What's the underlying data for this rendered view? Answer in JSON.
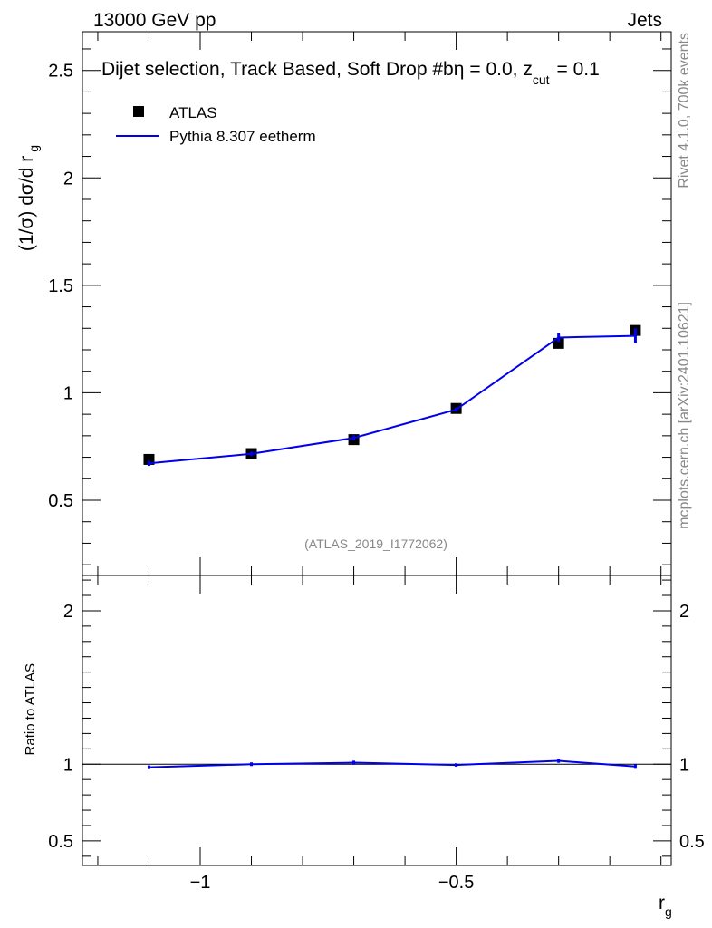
{
  "header": {
    "left": "13000 GeV pp",
    "right": "Jets"
  },
  "side_labels": {
    "rivet": "Rivet 4.1.0,  700k events",
    "mcplots": "mcplots.cern.ch [arXiv:2401.10621]"
  },
  "chart_data": [
    {
      "type": "scatter",
      "title": "Dijet selection, Track Based, Soft Drop #b",
      "title_suffix": "= 0.0, z",
      "title_sub": "cut",
      "title_tail": "= 0.1",
      "title_beta": "η",
      "ylabel": "(1/σ) dσ/d r",
      "ylabel_sub": "g",
      "ylim": [
        0.15,
        2.68
      ],
      "xlim": [
        -1.23,
        -0.08
      ],
      "yticks": [
        0.5,
        1,
        1.5,
        2,
        2.5
      ],
      "ytick_labels": [
        "0.5",
        "1",
        "1.5",
        "2",
        "2.5"
      ],
      "legend_position": "top-left",
      "watermark": "(ATLAS_2019_I1772062)",
      "series": [
        {
          "name": "ATLAS",
          "color": "#000000",
          "style": "square",
          "x": [
            -1.1,
            -0.9,
            -0.7,
            -0.5,
            -0.3,
            -0.15
          ],
          "y": [
            0.69,
            0.717,
            0.782,
            0.927,
            1.23,
            1.29
          ]
        },
        {
          "name": "Pythia 8.307 eetherm",
          "color": "#0000ee",
          "style": "line",
          "x": [
            -1.1,
            -0.9,
            -0.7,
            -0.5,
            -0.3,
            -0.15
          ],
          "y": [
            0.672,
            0.716,
            0.79,
            0.922,
            1.257,
            1.265
          ],
          "yerr": [
            0.012,
            0.01,
            0.012,
            0.01,
            0.02,
            0.035
          ]
        }
      ]
    },
    {
      "type": "line",
      "ylabel": "Ratio to ATLAS",
      "xlabel": "r",
      "xlabel_sub": "g",
      "ylim": [
        0.34,
        2.23
      ],
      "xlim": [
        -1.23,
        -0.08
      ],
      "yticks": [
        0.5,
        1,
        2
      ],
      "ytick_labels": [
        "0.5",
        "1",
        "2"
      ],
      "xticks": [
        -1.0,
        -0.5
      ],
      "xtick_labels": [
        "−1",
        "−0.5"
      ],
      "reference": 1.0,
      "series": [
        {
          "name": "Pythia 8.307 eetherm / ATLAS",
          "color": "#0000ee",
          "x": [
            -1.1,
            -0.9,
            -0.7,
            -0.5,
            -0.3,
            -0.15
          ],
          "values": [
            0.98,
            1.0,
            1.01,
            0.995,
            1.022,
            0.985
          ],
          "yerr": [
            0.012,
            0.012,
            0.013,
            0.011,
            0.013,
            0.015
          ]
        }
      ]
    }
  ]
}
